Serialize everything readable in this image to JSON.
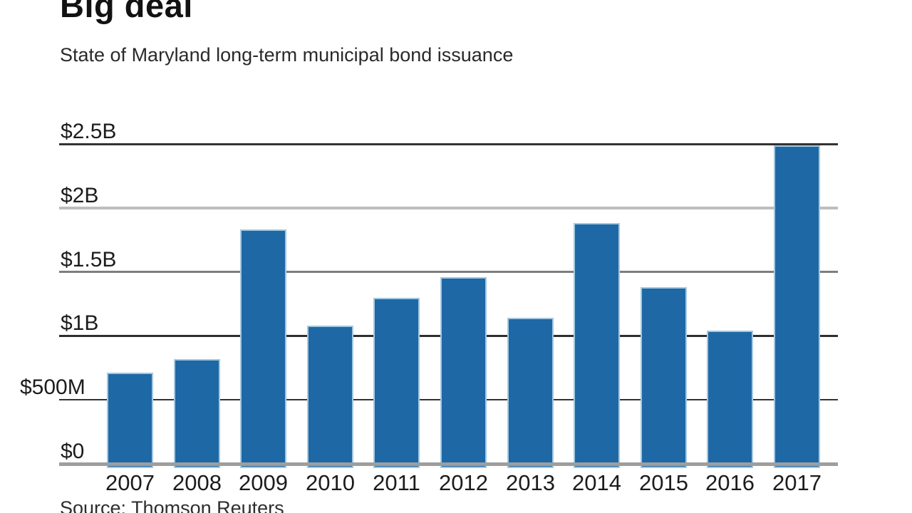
{
  "page": {
    "background": "#ffffff"
  },
  "chart_data": {
    "type": "bar",
    "title": "Big deal",
    "subtitle": "State of Maryland long-term municipal bond issuance",
    "source": "Source: Thomson Reuters",
    "series_name": "State of Maryland long-term municipal bond issuance",
    "categories": [
      "2007",
      "2008",
      "2009",
      "2010",
      "2011",
      "2012",
      "2013",
      "2014",
      "2015",
      "2016",
      "2017"
    ],
    "values_usd_millions": [
      710,
      820,
      1830,
      1080,
      1300,
      1460,
      1140,
      1880,
      1380,
      1040,
      2490
    ],
    "unit": "USD",
    "ylim": [
      0,
      2500
    ],
    "yticks": [
      {
        "value": 0,
        "label": "$0"
      },
      {
        "value": 500,
        "label": "$500M"
      },
      {
        "value": 1000,
        "label": "$1B"
      },
      {
        "value": 1500,
        "label": "$1.5B"
      },
      {
        "value": 2000,
        "label": "$2B"
      },
      {
        "value": 2500,
        "label": "$2.5B"
      }
    ],
    "grid": "horizontal",
    "legend": "none",
    "colors": {
      "bar_fill": "#1e68a5",
      "bar_edge": "#a3c8e0",
      "axis_text": "#1c1c1c",
      "baseline": "#9e9e9e",
      "grid_dark": "#333333",
      "grid_medium": "#7d7d7d",
      "grid_light": "#bdbdbd"
    }
  }
}
